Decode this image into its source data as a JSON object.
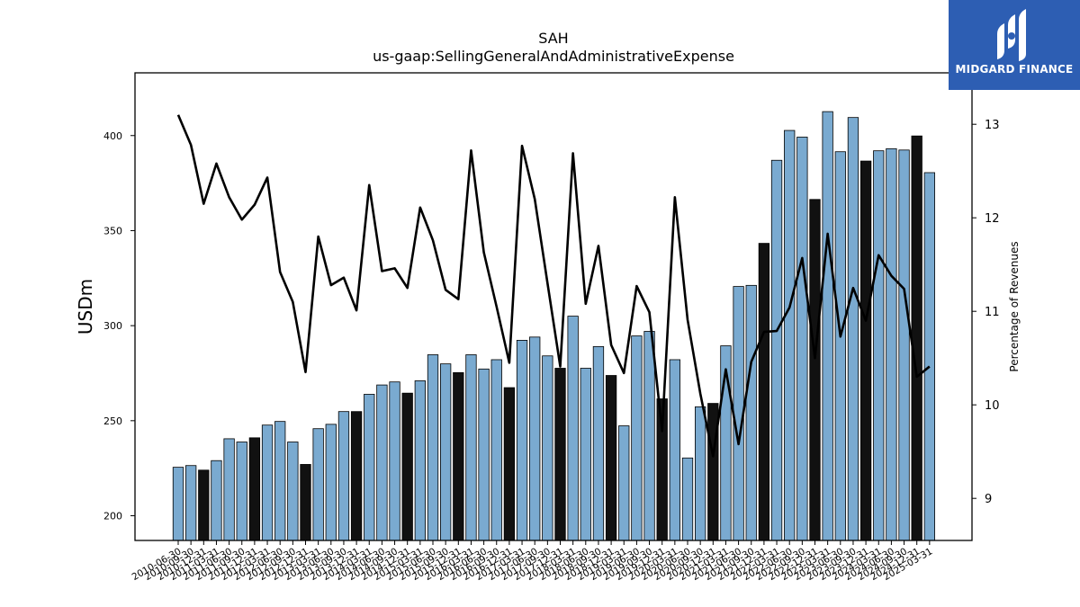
{
  "logo": {
    "text": "MIDGARD FINANCE"
  },
  "chart_data": {
    "type": "bar",
    "title": "SAH",
    "subtitle": "us-gaap:SellingGeneralAndAdministrativeExpense",
    "ylabel": "USDm",
    "y2label": "Percentage of Revenues",
    "ylim": [
      187,
      433
    ],
    "y2lim": [
      8.55,
      13.55
    ],
    "yticks": [
      200,
      250,
      300,
      350,
      400
    ],
    "y2ticks": [
      9,
      10,
      11,
      12,
      13
    ],
    "colors": {
      "bar": "#7aaad0",
      "bar_highlight": "#111111",
      "line": "#000000"
    },
    "categories": [
      "2010-06-30",
      "2010-09-30",
      "2010-12-31",
      "2011-03-31",
      "2011-06-30",
      "2011-09-30",
      "2011-12-31",
      "2012-03-31",
      "2012-06-30",
      "2012-09-30",
      "2012-12-31",
      "2013-03-31",
      "2013-06-30",
      "2013-09-30",
      "2013-12-31",
      "2014-03-31",
      "2014-06-30",
      "2014-09-30",
      "2014-12-31",
      "2015-03-31",
      "2015-06-30",
      "2015-09-30",
      "2015-12-31",
      "2016-03-31",
      "2016-06-30",
      "2016-09-30",
      "2016-12-31",
      "2017-03-31",
      "2017-06-30",
      "2017-09-30",
      "2017-12-31",
      "2018-03-31",
      "2018-06-30",
      "2018-09-30",
      "2018-12-31",
      "2019-03-31",
      "2019-06-30",
      "2019-09-30",
      "2019-12-31",
      "2020-03-31",
      "2020-06-30",
      "2020-09-30",
      "2020-12-31",
      "2021-03-31",
      "2021-06-30",
      "2021-09-30",
      "2021-12-31",
      "2022-03-31",
      "2022-06-30",
      "2022-09-30",
      "2022-12-31",
      "2023-03-31",
      "2023-06-30",
      "2023-09-30",
      "2023-12-31",
      "2024-03-31",
      "2024-06-30",
      "2024-09-30",
      "2024-12-31",
      "2025-03-31"
    ],
    "series": [
      {
        "type": "bar",
        "values": [
          225.5,
          226.4,
          224.0,
          229.0,
          240.5,
          238.8,
          241.0,
          247.7,
          249.6,
          238.8,
          227.0,
          245.8,
          248.1,
          254.8,
          254.8,
          263.9,
          268.8,
          270.4,
          264.5,
          271.0,
          284.7,
          279.9,
          275.3,
          284.7,
          277.2,
          282.1,
          267.4,
          292.3,
          294.0,
          284.1,
          277.6,
          305.0,
          277.6,
          289.0,
          273.8,
          247.3,
          294.6,
          297.0,
          261.5,
          282.1,
          230.4,
          257.3,
          259.1,
          289.4,
          320.6,
          321.2,
          343.3,
          387.0,
          402.7,
          399.2,
          366.4,
          412.6,
          391.5,
          409.5,
          386.6,
          392.0,
          393.1,
          392.4,
          399.8,
          380.5
        ],
        "highlight": [
          false,
          false,
          true,
          false,
          false,
          false,
          true,
          false,
          false,
          false,
          true,
          false,
          false,
          false,
          true,
          false,
          false,
          false,
          true,
          false,
          false,
          false,
          true,
          false,
          false,
          false,
          true,
          false,
          false,
          false,
          true,
          false,
          false,
          false,
          true,
          false,
          false,
          false,
          true,
          false,
          false,
          false,
          true,
          false,
          false,
          false,
          true,
          false,
          false,
          false,
          true,
          false,
          false,
          false,
          true,
          false,
          false,
          false,
          true,
          false
        ]
      },
      {
        "type": "line",
        "axis": "right",
        "values": [
          13.1,
          12.78,
          12.15,
          12.58,
          12.22,
          11.98,
          12.14,
          12.43,
          11.42,
          11.1,
          10.35,
          11.8,
          11.28,
          11.36,
          11.01,
          12.35,
          11.43,
          11.46,
          11.25,
          12.11,
          11.76,
          11.23,
          11.13,
          12.72,
          11.63,
          11.05,
          10.45,
          12.77,
          12.2,
          11.3,
          10.41,
          12.69,
          11.08,
          11.7,
          10.64,
          10.34,
          11.27,
          10.99,
          9.72,
          12.22,
          10.91,
          10.12,
          9.45,
          10.38,
          9.58,
          10.46,
          10.78,
          10.79,
          11.04,
          11.57,
          10.5,
          11.83,
          10.73,
          11.25,
          10.9,
          11.6,
          11.38,
          11.24,
          10.3,
          10.41
        ]
      }
    ]
  }
}
